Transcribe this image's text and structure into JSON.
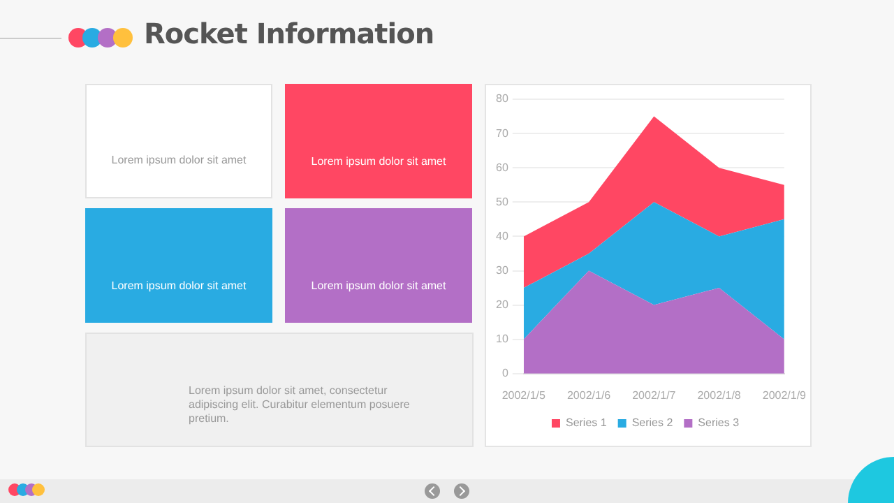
{
  "chart_data": [
    {
      "type": "other",
      "title": "Rocket Information",
      "annotations": [
        "Lorem ipsum dolor sit amet",
        "Lorem ipsum dolor sit amet",
        "Lorem ipsum dolor sit amet",
        "Lorem ipsum dolor sit amet",
        "Lorem ipsum dolor sit amet, consectetur adipiscing elit. Curabitur elementum posuere pretium."
      ]
    },
    {
      "type": "area",
      "stacked": true,
      "categories": [
        "2002/1/5",
        "2002/1/6",
        "2002/1/7",
        "2002/1/8",
        "2002/1/9"
      ],
      "series": [
        {
          "name": "Series 3",
          "color": "#b36fc6",
          "values": [
            10,
            30,
            20,
            25,
            10
          ]
        },
        {
          "name": "Series 2",
          "color": "#29abe2",
          "values": [
            15,
            5,
            30,
            15,
            35
          ]
        },
        {
          "name": "Series 1",
          "color": "#ff4763",
          "values": [
            15,
            15,
            25,
            20,
            10
          ]
        }
      ],
      "ylim": [
        0,
        80
      ],
      "yticks": [
        0,
        10,
        20,
        30,
        40,
        50,
        60,
        70,
        80
      ],
      "grid": "y",
      "legend": "bottom",
      "marker": "none"
    }
  ]
}
